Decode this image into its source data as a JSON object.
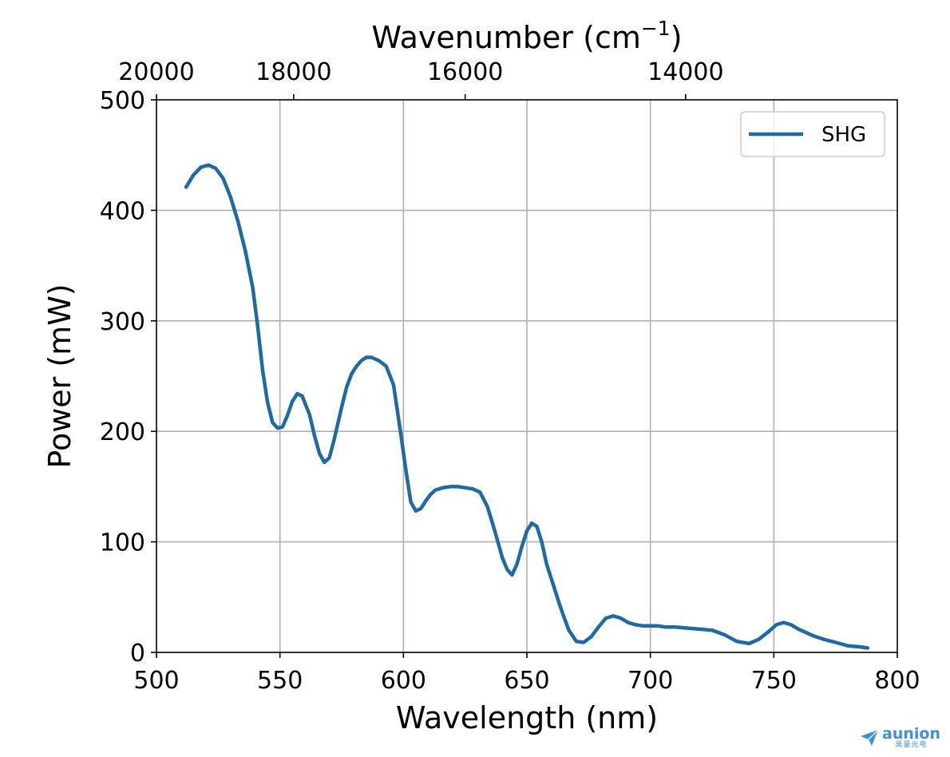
{
  "chart_data": {
    "type": "line",
    "xlabel": "Wavelength (nm)",
    "ylabel": "Power (mW)",
    "x2label": "Wavenumber (cm",
    "x2label_sup": "−1",
    "x2label_close": ")",
    "xlim": [
      500,
      800
    ],
    "ylim": [
      0,
      500
    ],
    "xticks": [
      "500",
      "550",
      "600",
      "650",
      "700",
      "750",
      "800"
    ],
    "yticks": [
      "0",
      "100",
      "200",
      "300",
      "400",
      "500"
    ],
    "x2ticks": [
      "20000",
      "18000",
      "16000",
      "14000"
    ],
    "x2tick_values": [
      20000,
      18000,
      16000,
      14000
    ],
    "grid": true,
    "legend_position": "top-right",
    "series_color": "#1f6aa0",
    "series": [
      {
        "name": "SHG",
        "x": [
          512,
          515,
          518,
          521,
          524,
          527,
          530,
          533,
          536,
          539,
          541,
          543,
          545,
          547,
          549,
          551,
          553,
          555,
          557,
          559,
          562,
          564,
          566,
          568,
          570,
          572,
          575,
          577,
          579,
          581,
          583,
          585,
          587,
          590,
          593,
          596,
          599,
          601,
          603,
          605,
          607,
          609,
          611,
          613,
          616,
          619,
          622,
          625,
          628,
          631,
          634,
          637,
          640,
          642,
          644,
          646,
          648,
          650,
          652,
          654,
          656,
          658,
          661,
          663,
          665,
          667,
          670,
          673,
          676,
          679,
          682,
          685,
          688,
          691,
          694,
          697,
          700,
          703,
          706,
          710,
          715,
          720,
          725,
          730,
          735,
          740,
          744,
          748,
          751,
          754,
          757,
          760,
          763,
          766,
          770,
          775,
          780,
          785,
          788
        ],
        "y": [
          421,
          432,
          439,
          441,
          438,
          429,
          412,
          390,
          363,
          330,
          295,
          255,
          226,
          208,
          203,
          204,
          214,
          227,
          234,
          232,
          215,
          196,
          180,
          172,
          176,
          193,
          222,
          240,
          252,
          259,
          264,
          267,
          267,
          264,
          259,
          242,
          197,
          165,
          136,
          128,
          130,
          137,
          143,
          147,
          149,
          150,
          150,
          149,
          148,
          145,
          132,
          110,
          86,
          75,
          70,
          80,
          96,
          110,
          117,
          114,
          100,
          80,
          59,
          45,
          32,
          20,
          10,
          9,
          14,
          23,
          31,
          33,
          31,
          27,
          25,
          24,
          24,
          24,
          23,
          23,
          22,
          21,
          20,
          16,
          10,
          8,
          12,
          19,
          25,
          27,
          25,
          21,
          18,
          15,
          12,
          9,
          6,
          5,
          4
        ]
      }
    ]
  },
  "watermark": {
    "brand": "aunion",
    "sub": "昊量光电"
  }
}
